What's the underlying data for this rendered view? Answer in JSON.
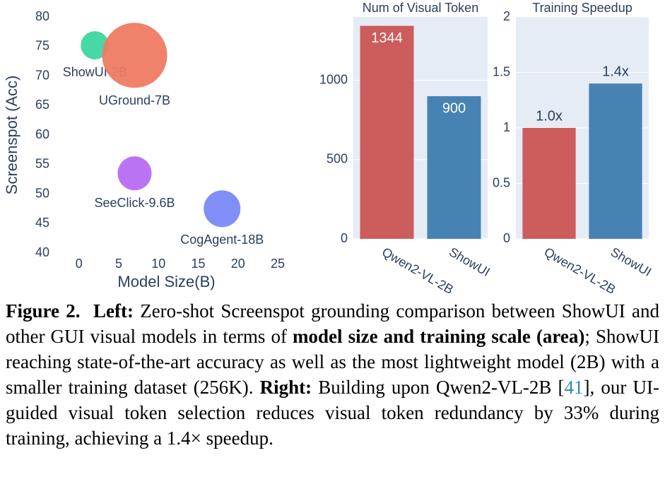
{
  "chart_data": [
    {
      "type": "scatter",
      "x_label": "Model Size(B)",
      "y_label": "Screenspot (Acc)",
      "labels": [
        "ShowUI-2B",
        "UGround-7B",
        "SeeClick-9.6B",
        "CogAgent-18B"
      ],
      "x": [
        2,
        7,
        7,
        18
      ],
      "values": [
        75.2,
        73.5,
        53.5,
        47.5
      ],
      "sizes": [
        256,
        1354,
        369,
        433
      ],
      "colors": [
        "#3dd6a0",
        "#ef7a63",
        "#b76cf5",
        "#7b88f7"
      ],
      "xlim": [
        -3,
        25
      ],
      "xticks": [
        0,
        5,
        10,
        15,
        20,
        25
      ],
      "ylim": [
        40,
        80
      ],
      "yticks": [
        40,
        45,
        50,
        55,
        60,
        65,
        70,
        75,
        80
      ],
      "grid": false
    },
    {
      "type": "bar",
      "title": "Num of Visual Token",
      "categories": [
        "Qwen2-VL-2B",
        "ShowUI"
      ],
      "values": [
        1344,
        900
      ],
      "colors": [
        "#cd5c5c",
        "#4682b4"
      ],
      "ylim": [
        0,
        1400
      ],
      "yticks": [
        0,
        500,
        1000
      ],
      "grid": true
    },
    {
      "type": "bar",
      "title": "Training Speedup",
      "categories": [
        "Qwen2-VL-2B",
        "ShowUI"
      ],
      "values": [
        1.0,
        1.4
      ],
      "value_labels": [
        "1.0x",
        "1.4x"
      ],
      "colors": [
        "#cd5c5c",
        "#4682b4"
      ],
      "ylim": [
        0,
        2
      ],
      "yticks": [
        0,
        0.5,
        1,
        1.5,
        2
      ],
      "grid": true
    }
  ],
  "caption": {
    "parts": [
      "Figure 2.",
      "Left:",
      " Zero-shot Screenspot grounding comparison between ShowUI and other GUI visual models in terms of ",
      "model size and training scale (area)",
      "; ShowUI reaching state-of-the-art accuracy as well as the most lightweight model (2B) with a smaller training dataset (256K). ",
      "Right:",
      " Building upon Qwen2-VL-2B [",
      "41",
      "], our UI-guided visual token selection reduces visual token redundancy by 33% during training, achieving a 1.4× speedup."
    ]
  }
}
